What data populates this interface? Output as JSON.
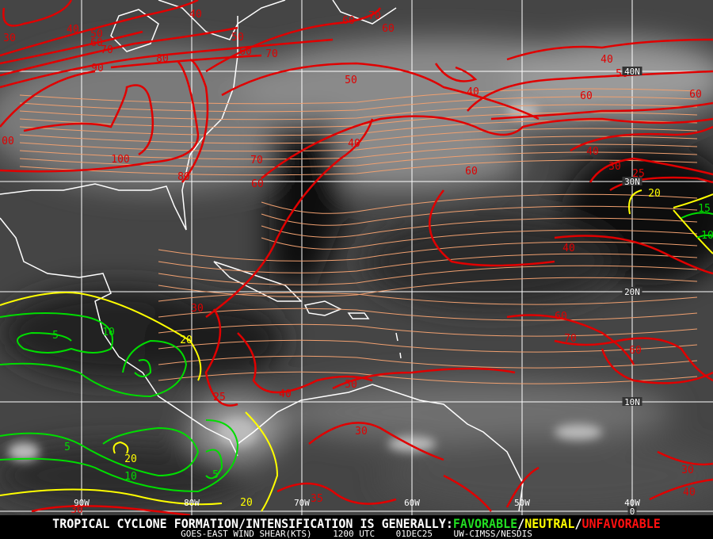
{
  "caption": {
    "headline_prefix": "TROPICAL CYCLONE FORMATION/INTENSIFICATION IS GENERALLY:",
    "favorable": "FAVORABLE",
    "sep1": "/",
    "neutral": "NEUTRAL",
    "sep2": "/",
    "unfavorable": "UNFAVORABLE",
    "product": "GOES-EAST WIND SHEAR(KTS)",
    "time": "1200 UTC",
    "date": "01DEC25",
    "source": "UW-CIMSS/NESDIS"
  },
  "grid": {
    "longitudes": [
      "90W",
      "80W",
      "70W",
      "60W",
      "50W",
      "40W"
    ],
    "latitudes": [
      "40N",
      "30N",
      "20N",
      "10N",
      "0"
    ]
  },
  "colors": {
    "unfavorable": "#e00000",
    "neutral": "#ffff00",
    "favorable": "#00dd00",
    "streamlines": "#f0a070",
    "coastline": "#ffffff",
    "grid": "#ffffff"
  },
  "contour_labels": [
    {
      "value": "40",
      "level": "unfavorable"
    },
    {
      "value": "30",
      "level": "unfavorable"
    },
    {
      "value": "40",
      "level": "unfavorable"
    },
    {
      "value": "50",
      "level": "unfavorable"
    },
    {
      "value": "60",
      "level": "unfavorable"
    },
    {
      "value": "70",
      "level": "unfavorable"
    },
    {
      "value": "90",
      "level": "unfavorable"
    },
    {
      "value": "50",
      "level": "unfavorable"
    },
    {
      "value": "60",
      "level": "unfavorable"
    },
    {
      "value": "70",
      "level": "unfavorable"
    },
    {
      "value": "80",
      "level": "unfavorable"
    },
    {
      "value": "60",
      "level": "unfavorable"
    },
    {
      "value": "70",
      "level": "unfavorable"
    },
    {
      "value": "60",
      "level": "unfavorable"
    },
    {
      "value": "50",
      "level": "unfavorable"
    },
    {
      "value": "40",
      "level": "unfavorable"
    },
    {
      "value": "40",
      "level": "unfavorable"
    },
    {
      "value": "50",
      "level": "unfavorable"
    },
    {
      "value": "60",
      "level": "unfavorable"
    },
    {
      "value": "60",
      "level": "unfavorable"
    },
    {
      "value": "00",
      "level": "unfavorable"
    },
    {
      "value": "100",
      "level": "unfavorable"
    },
    {
      "value": "80",
      "level": "unfavorable"
    },
    {
      "value": "70",
      "level": "unfavorable"
    },
    {
      "value": "60",
      "level": "unfavorable"
    },
    {
      "value": "40",
      "level": "unfavorable"
    },
    {
      "value": "60",
      "level": "unfavorable"
    },
    {
      "value": "40",
      "level": "unfavorable"
    },
    {
      "value": "30",
      "level": "unfavorable"
    },
    {
      "value": "25",
      "level": "unfavorable"
    },
    {
      "value": "40",
      "level": "unfavorable"
    },
    {
      "value": "30",
      "level": "unfavorable"
    },
    {
      "value": "25",
      "level": "unfavorable"
    },
    {
      "value": "40",
      "level": "unfavorable"
    },
    {
      "value": "60",
      "level": "unfavorable"
    },
    {
      "value": "70",
      "level": "unfavorable"
    },
    {
      "value": "50",
      "level": "unfavorable"
    },
    {
      "value": "60",
      "level": "unfavorable"
    },
    {
      "value": "30",
      "level": "unfavorable"
    },
    {
      "value": "35",
      "level": "unfavorable"
    },
    {
      "value": "30",
      "level": "unfavorable"
    },
    {
      "value": "40",
      "level": "unfavorable"
    },
    {
      "value": "30",
      "level": "unfavorable"
    },
    {
      "value": "20",
      "level": "neutral"
    },
    {
      "value": "20",
      "level": "neutral"
    },
    {
      "value": "20",
      "level": "neutral"
    },
    {
      "value": "20",
      "level": "neutral"
    },
    {
      "value": "15",
      "level": "favorable"
    },
    {
      "value": "10",
      "level": "favorable"
    },
    {
      "value": "10",
      "level": "favorable"
    },
    {
      "value": "5",
      "level": "favorable"
    },
    {
      "value": "5",
      "level": "favorable"
    },
    {
      "value": "10",
      "level": "favorable"
    },
    {
      "value": "5",
      "level": "favorable"
    }
  ]
}
